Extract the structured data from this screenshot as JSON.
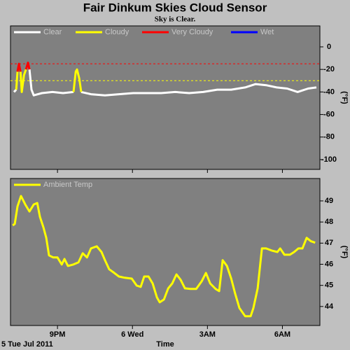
{
  "chart_data": [
    {
      "type": "line",
      "title": "Fair Dinkum Skies Cloud Sensor",
      "subtitle": "Sky is Clear.",
      "y_label": "(°F)",
      "x": [
        19.26,
        19.35,
        19.4,
        19.46,
        19.52,
        19.57,
        19.66,
        19.74,
        19.82,
        19.88,
        19.96,
        20.05,
        20.38,
        20.8,
        21.22,
        21.64,
        21.73,
        21.78,
        21.87,
        21.95,
        22.34,
        22.9,
        23.46,
        24.03,
        24.59,
        25.15,
        25.71,
        26.27,
        26.83,
        27.39,
        27.95,
        28.51,
        28.93,
        29.35,
        29.77,
        30.19,
        30.61,
        31.03,
        31.36
      ],
      "series": [
        {
          "name": "Clear",
          "color": "#ffffff",
          "values": [
            -40,
            -38,
            null,
            null,
            null,
            null,
            null,
            null,
            null,
            -20,
            -38,
            -43,
            -41,
            -40,
            -41,
            -40,
            null,
            null,
            null,
            -40,
            -42,
            -43,
            -42,
            -41,
            -41,
            -41,
            -40,
            -41,
            -40,
            -38,
            -38,
            -36,
            -33,
            -34,
            -36,
            -37,
            -40,
            -37,
            -36
          ]
        },
        {
          "name": "Cloudy",
          "color": "#ffff00",
          "values": [
            null,
            -38,
            -22,
            null,
            -22,
            -40,
            -25,
            -20,
            null,
            null,
            null,
            null,
            null,
            null,
            null,
            -40,
            -22,
            -20,
            -28,
            -40,
            null,
            null,
            null,
            null,
            null,
            null,
            null,
            null,
            null,
            null,
            null,
            null,
            null,
            null,
            null,
            null,
            null,
            null,
            null
          ]
        },
        {
          "name": "Very Cloudy",
          "color": "#ff0000",
          "values": [
            null,
            null,
            -22,
            -15,
            -22,
            null,
            null,
            -20,
            -14,
            -20,
            null,
            null,
            null,
            null,
            null,
            null,
            null,
            null,
            null,
            null,
            null,
            null,
            null,
            null,
            null,
            null,
            null,
            null,
            null,
            null,
            null,
            null,
            null,
            null,
            null,
            null,
            null,
            null,
            null
          ]
        },
        {
          "name": "Wet",
          "color": "#0000ff",
          "values": [
            null,
            null,
            null,
            null,
            null,
            null,
            null,
            null,
            null,
            null,
            null,
            null,
            null,
            null,
            null,
            null,
            null,
            null,
            null,
            null,
            null,
            null,
            null,
            null,
            null,
            null,
            null,
            null,
            null,
            null,
            null,
            null,
            null,
            null,
            null,
            null,
            null,
            null,
            null
          ]
        }
      ],
      "reference_lines": [
        {
          "value": -15,
          "color": "#ff0000"
        },
        {
          "value": -30,
          "color": "#ffff00"
        }
      ],
      "xlim": [
        19.12,
        31.5
      ],
      "xticks": [
        21,
        24,
        27,
        30
      ],
      "ylim": [
        -108.7,
        18.6
      ],
      "yticks": [
        0,
        -20,
        -40,
        -60,
        -80,
        -100
      ]
    },
    {
      "type": "line",
      "y_label": "(°F)",
      "x_label": "Time",
      "date_label": "5 Tue Jul 2011",
      "x": [
        19.21,
        19.29,
        19.4,
        19.54,
        19.71,
        19.88,
        20.05,
        20.19,
        20.3,
        20.44,
        20.55,
        20.66,
        20.83,
        21.0,
        21.17,
        21.28,
        21.42,
        21.64,
        21.84,
        22.01,
        22.18,
        22.34,
        22.57,
        22.76,
        22.9,
        23.07,
        23.27,
        23.46,
        23.69,
        23.97,
        24.17,
        24.33,
        24.47,
        24.64,
        24.81,
        24.98,
        25.09,
        25.26,
        25.43,
        25.59,
        25.76,
        25.93,
        26.1,
        26.32,
        26.55,
        26.77,
        26.94,
        27.11,
        27.33,
        27.47,
        27.61,
        27.78,
        27.95,
        28.11,
        28.28,
        28.51,
        28.73,
        28.84,
        29.01,
        29.18,
        29.35,
        29.57,
        29.8,
        29.91,
        30.08,
        30.3,
        30.47,
        30.64,
        30.8,
        30.97,
        31.14,
        31.31
      ],
      "series": [
        {
          "name": "Ambient Temp",
          "color": "#ffff00",
          "values": [
            47.84,
            47.91,
            48.74,
            49.23,
            48.83,
            48.5,
            48.83,
            48.9,
            48.24,
            47.74,
            47.25,
            46.42,
            46.32,
            46.32,
            45.99,
            46.25,
            45.92,
            45.99,
            46.09,
            46.52,
            46.32,
            46.75,
            46.85,
            46.58,
            46.19,
            45.76,
            45.59,
            45.42,
            45.36,
            45.32,
            44.99,
            44.93,
            45.42,
            45.42,
            45.09,
            44.43,
            44.2,
            44.33,
            44.86,
            45.09,
            45.52,
            45.26,
            44.86,
            44.83,
            44.83,
            45.19,
            45.59,
            45.09,
            44.83,
            44.73,
            46.19,
            45.92,
            45.32,
            44.6,
            43.93,
            43.54,
            43.54,
            43.93,
            44.86,
            46.75,
            46.75,
            46.65,
            46.58,
            46.75,
            46.45,
            46.45,
            46.58,
            46.75,
            46.75,
            47.25,
            47.09,
            47.02
          ]
        }
      ],
      "xlim": [
        19.12,
        31.5
      ],
      "xticks": [
        {
          "value": 21,
          "label": "9PM"
        },
        {
          "value": 24,
          "label": "6 Wed"
        },
        {
          "value": 27,
          "label": "3AM"
        },
        {
          "value": 30,
          "label": "6AM"
        }
      ],
      "ylim": [
        43.1,
        50.06
      ],
      "yticks": [
        44,
        45,
        46,
        47,
        48,
        49
      ]
    }
  ]
}
